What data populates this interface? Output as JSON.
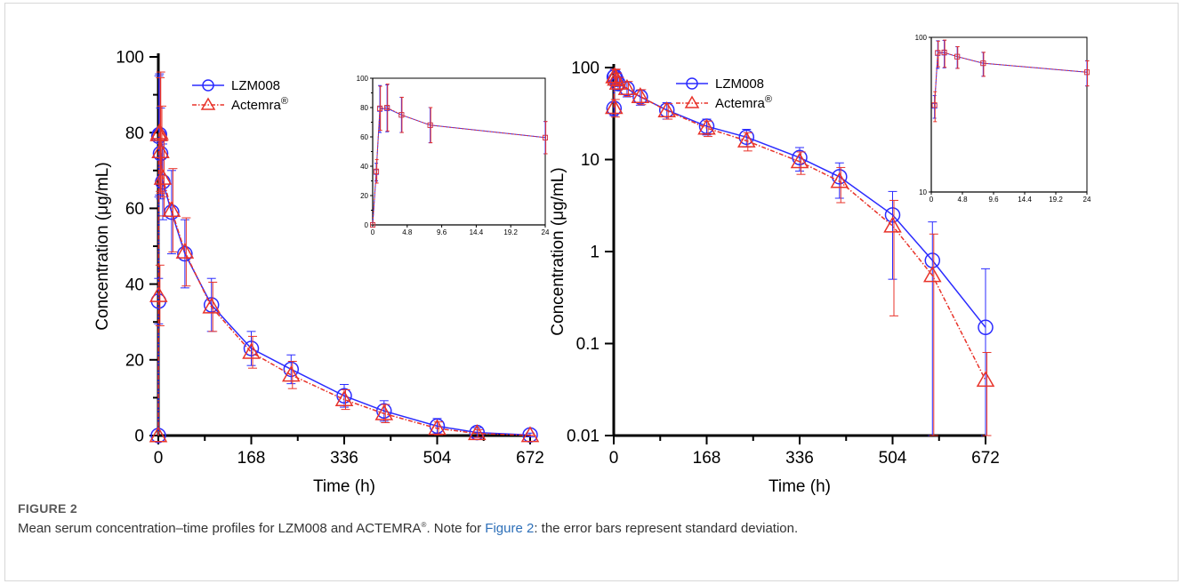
{
  "figure": {
    "label": "FIGURE 2",
    "caption_pre": "Mean serum concentration–time profiles for LZM008 and ACTEMRA",
    "caption_sup": "®",
    "caption_mid": ". Note for ",
    "caption_link": "Figure 2",
    "caption_post": ": the error bars represent standard deviation."
  },
  "colors": {
    "lzm008": "#2b2bff",
    "actemra": "#e8332a",
    "axis": "#000000"
  },
  "chart_data": [
    {
      "id": "linear-main",
      "type": "line",
      "xlabel": "Time (h)",
      "ylabel": "Concentration (μg/mL)",
      "xlim": [
        0,
        672
      ],
      "ylim": [
        0,
        100
      ],
      "yscale": "linear",
      "xticks": [
        0,
        168,
        336,
        504,
        672
      ],
      "yticks": [
        0,
        20,
        40,
        60,
        80,
        100
      ],
      "legend": {
        "position": "top-right",
        "entries": [
          "LZM008",
          "Actemra"
        ],
        "sup": "®"
      },
      "series": [
        {
          "name": "LZM008",
          "marker": "circle",
          "x": [
            0,
            0.5,
            1,
            2,
            4,
            8,
            24,
            48,
            96,
            168,
            240,
            336,
            408,
            504,
            576,
            672
          ],
          "y": [
            0,
            35.5,
            79,
            79.5,
            74.5,
            67,
            59,
            48,
            34.5,
            23,
            17.5,
            10.5,
            6.5,
            2.5,
            0.8,
            0.15
          ],
          "sd": [
            0,
            6,
            16,
            16,
            12,
            10,
            11,
            9,
            7,
            4.5,
            3.8,
            3,
            2.7,
            2,
            1.3,
            0.5
          ]
        },
        {
          "name": "Actemra",
          "marker": "triangle",
          "x": [
            0,
            0.5,
            1,
            2,
            4,
            8,
            24,
            48,
            96,
            168,
            240,
            336,
            408,
            504,
            576,
            672
          ],
          "y": [
            0,
            37,
            79.5,
            80,
            75,
            68,
            59.5,
            48.5,
            34,
            22,
            16,
            9.5,
            5.8,
            1.9,
            0.55,
            0.04
          ],
          "sd": [
            0,
            8,
            15,
            16,
            12,
            10,
            11,
            9,
            6.5,
            4.2,
            3.6,
            2.6,
            2.4,
            1.7,
            1,
            0.04
          ]
        }
      ]
    },
    {
      "id": "linear-inset",
      "type": "line",
      "xlim": [
        0,
        24
      ],
      "ylim": [
        0,
        100
      ],
      "yscale": "linear",
      "xticks": [
        "0",
        "4.8",
        "9.6",
        "14.4",
        "19.2",
        "24"
      ],
      "yticks": [
        0,
        20,
        40,
        60,
        80,
        100
      ],
      "series": [
        {
          "name": "LZM008",
          "x": [
            0,
            0.5,
            1,
            2,
            4,
            8,
            24
          ],
          "y": [
            0,
            36,
            79,
            79.5,
            75,
            68,
            59.5
          ],
          "sd": [
            0,
            6,
            16,
            16,
            12,
            12,
            11
          ]
        },
        {
          "name": "Actemra",
          "x": [
            0,
            0.5,
            1,
            2,
            4,
            8,
            24
          ],
          "y": [
            0,
            36.5,
            79.5,
            80,
            75,
            68,
            59.5
          ],
          "sd": [
            0,
            8,
            15,
            16,
            12,
            12,
            11
          ]
        }
      ]
    },
    {
      "id": "log-main",
      "type": "line",
      "xlabel": "Time (h)",
      "ylabel": "Concentration (μg/mL)",
      "xlim": [
        0,
        672
      ],
      "ylim": [
        0.01,
        100
      ],
      "yscale": "log",
      "xticks": [
        0,
        168,
        336,
        504,
        672
      ],
      "yticks": [
        "0.01",
        "0.1",
        "1",
        "10",
        "100"
      ],
      "legend": {
        "position": "top-right",
        "entries": [
          "LZM008",
          "Actemra"
        ],
        "sup": "®"
      },
      "series": [
        {
          "name": "LZM008",
          "marker": "circle",
          "x": [
            0.5,
            1,
            2,
            4,
            8,
            24,
            48,
            96,
            168,
            240,
            336,
            408,
            504,
            576,
            672
          ],
          "y": [
            36,
            79,
            80,
            74.5,
            67,
            59,
            48,
            34.5,
            23,
            17.5,
            10.5,
            6.5,
            2.5,
            0.8,
            0.15
          ],
          "sd": [
            6,
            16,
            16,
            12,
            10,
            11,
            9,
            7,
            4.5,
            3.8,
            3,
            2.7,
            2,
            1.3,
            0.5
          ]
        },
        {
          "name": "Actemra",
          "marker": "triangle",
          "x": [
            0.5,
            1,
            2,
            4,
            8,
            24,
            48,
            96,
            168,
            240,
            336,
            408,
            504,
            576,
            672
          ],
          "y": [
            37,
            79.5,
            80,
            75,
            68,
            59.5,
            48.5,
            34,
            22,
            16,
            9.5,
            5.8,
            1.9,
            0.55,
            0.04
          ],
          "sd": [
            8,
            15,
            16,
            12,
            10,
            11,
            9,
            6.5,
            4.2,
            3.6,
            2.6,
            2.4,
            1.7,
            1,
            0.04
          ]
        }
      ]
    },
    {
      "id": "log-inset",
      "type": "line",
      "xlim": [
        0,
        24
      ],
      "ylim": [
        10,
        100
      ],
      "yscale": "log",
      "xticks": [
        "0",
        "4.8",
        "9.6",
        "14.4",
        "19.2",
        "24"
      ],
      "yticks": [
        "10",
        "100"
      ],
      "series": [
        {
          "name": "LZM008",
          "x": [
            0.5,
            1,
            2,
            4,
            8,
            24
          ],
          "y": [
            36,
            79,
            79.5,
            75,
            68,
            59.5
          ],
          "sd": [
            6,
            16,
            16,
            12,
            12,
            11
          ]
        },
        {
          "name": "Actemra",
          "x": [
            0.5,
            1,
            2,
            4,
            8,
            24
          ],
          "y": [
            36.5,
            79.5,
            80,
            75,
            68,
            59.5
          ],
          "sd": [
            8,
            15,
            16,
            12,
            12,
            11
          ]
        }
      ]
    }
  ]
}
